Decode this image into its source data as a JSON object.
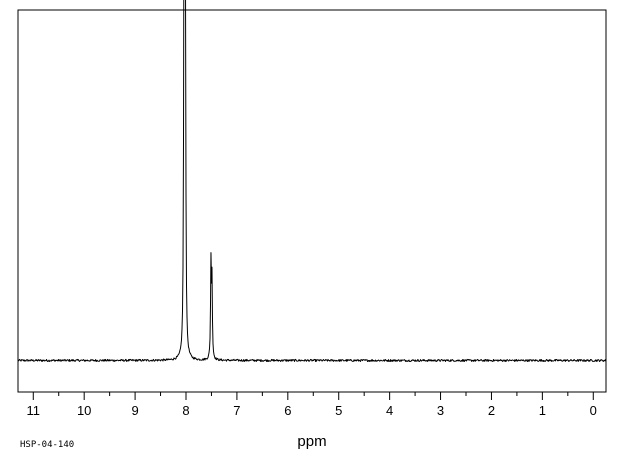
{
  "chart_data": {
    "type": "line",
    "title": "",
    "xlabel": "ppm",
    "ylabel": "",
    "sample_id": "HSP-04-140",
    "x_reversed": true,
    "xlim": [
      11.3,
      -0.25
    ],
    "ylim": [
      -0.09,
      1.0
    ],
    "x_ticks": [
      11,
      10,
      9,
      8,
      7,
      6,
      5,
      4,
      3,
      2,
      1,
      0
    ],
    "x_tick_labels": [
      "11",
      "10",
      "9",
      "8",
      "7",
      "6",
      "5",
      "4",
      "3",
      "2",
      "1",
      "0"
    ],
    "grid": false,
    "legend": "none",
    "line_color": "#000000",
    "baseline": 0.0,
    "peaks": [
      {
        "ppm": 8.04,
        "height": 0.94,
        "width": 0.009
      },
      {
        "ppm": 8.03,
        "height": 0.38,
        "width": 0.009
      },
      {
        "ppm": 8.02,
        "height": 0.74,
        "width": 0.009
      },
      {
        "ppm": 8.01,
        "height": 0.62,
        "width": 0.009
      },
      {
        "ppm": 7.51,
        "height": 0.27,
        "width": 0.009
      },
      {
        "ppm": 7.49,
        "height": 0.22,
        "width": 0.009
      }
    ]
  }
}
